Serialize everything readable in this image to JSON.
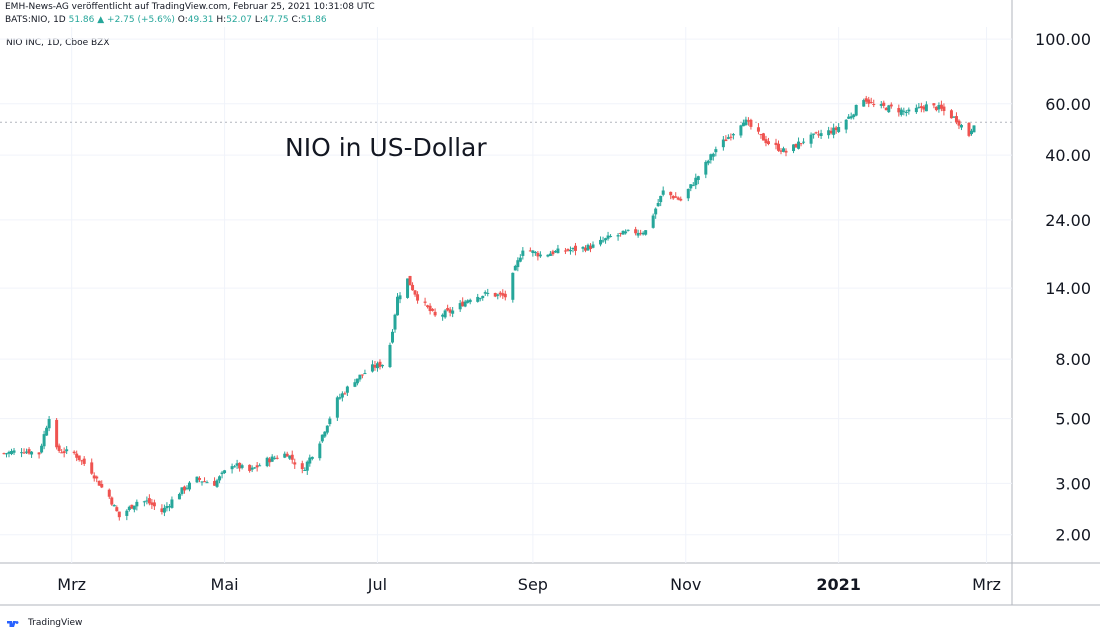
{
  "header": {
    "line1": "EMH-News-AG veröffentlicht auf TradingView.com, Februar 25, 2021 10:31:08 UTC",
    "symbol": "BATS:NIO, 1D",
    "last": "51.86",
    "change": "▲ +2.75 (+5.6%)",
    "o_label": "O:",
    "o": "49.31",
    "h_label": "H:",
    "h": "52.07",
    "l_label": "L:",
    "l": "47.75",
    "c_label": "C:",
    "c": "51.86"
  },
  "symbol_label": "NIO INC, 1D, Cboe BZX",
  "footer": {
    "brand": "TradingView",
    "logo_icon": "tradingview-logo-icon"
  },
  "colors": {
    "up": "#26a69a",
    "down": "#ef5350",
    "grid": "#f0f3fa",
    "axis": "#b2b5be"
  },
  "chart_data": {
    "type": "candlestick",
    "title": "NIO in US-Dollar",
    "yscale": "log",
    "ylim": [
      1.6,
      110
    ],
    "ytick_labels": [
      "100.00",
      "60.00",
      "40.00",
      "24.00",
      "14.00",
      "8.00",
      "5.00",
      "3.00",
      "2.00"
    ],
    "yticks": [
      100,
      60,
      40,
      24,
      14,
      8,
      5,
      3,
      2
    ],
    "xtick_labels": [
      "Mrz",
      "Mai",
      "Jul",
      "Sep",
      "Nov",
      "2021",
      "Mrz"
    ],
    "x_month_starts": [
      [
        2020,
        3
      ],
      [
        2020,
        5
      ],
      [
        2020,
        7
      ],
      [
        2020,
        9
      ],
      [
        2020,
        11
      ],
      [
        2021,
        1
      ],
      [
        2021,
        3
      ]
    ],
    "date_start": "2020-02-03",
    "date_end": "2021-02-24",
    "close_path": [
      [
        "2020-02-03",
        3.8
      ],
      [
        "2020-02-10",
        3.9
      ],
      [
        "2020-02-17",
        3.8
      ],
      [
        "2020-02-21",
        5.1
      ],
      [
        "2020-02-24",
        3.9
      ],
      [
        "2020-03-02",
        3.8
      ],
      [
        "2020-03-09",
        3.3
      ],
      [
        "2020-03-13",
        2.9
      ],
      [
        "2020-03-16",
        2.7
      ],
      [
        "2020-03-20",
        2.3
      ],
      [
        "2020-03-27",
        2.6
      ],
      [
        "2020-03-31",
        2.6
      ],
      [
        "2020-04-06",
        2.4
      ],
      [
        "2020-04-13",
        2.8
      ],
      [
        "2020-04-20",
        3.1
      ],
      [
        "2020-04-27",
        3.0
      ],
      [
        "2020-05-04",
        3.5
      ],
      [
        "2020-05-11",
        3.3
      ],
      [
        "2020-05-18",
        3.6
      ],
      [
        "2020-05-26",
        3.8
      ],
      [
        "2020-06-01",
        3.3
      ],
      [
        "2020-06-08",
        4.2
      ],
      [
        "2020-06-15",
        5.8
      ],
      [
        "2020-06-22",
        6.8
      ],
      [
        "2020-06-29",
        7.5
      ],
      [
        "2020-07-03",
        7.7
      ],
      [
        "2020-07-06",
        9.0
      ],
      [
        "2020-07-09",
        13.0
      ],
      [
        "2020-07-13",
        15.0
      ],
      [
        "2020-07-17",
        13.0
      ],
      [
        "2020-07-24",
        11.2
      ],
      [
        "2020-07-31",
        11.7
      ],
      [
        "2020-08-07",
        13.0
      ],
      [
        "2020-08-14",
        13.4
      ],
      [
        "2020-08-21",
        13.1
      ],
      [
        "2020-08-28",
        19.2
      ],
      [
        "2020-09-04",
        18.2
      ],
      [
        "2020-09-11",
        18.7
      ],
      [
        "2020-09-18",
        19.0
      ],
      [
        "2020-09-25",
        19.5
      ],
      [
        "2020-10-02",
        21.0
      ],
      [
        "2020-10-09",
        21.7
      ],
      [
        "2020-10-16",
        22.0
      ],
      [
        "2020-10-23",
        30.0
      ],
      [
        "2020-10-30",
        28.0
      ],
      [
        "2020-11-06",
        34.0
      ],
      [
        "2020-11-13",
        42.0
      ],
      [
        "2020-11-20",
        48.0
      ],
      [
        "2020-11-24",
        53.0
      ],
      [
        "2020-11-30",
        47.0
      ],
      [
        "2020-12-04",
        44.0
      ],
      [
        "2020-12-11",
        41.0
      ],
      [
        "2020-12-18",
        45.0
      ],
      [
        "2020-12-24",
        47.0
      ],
      [
        "2020-12-31",
        49.0
      ],
      [
        "2021-01-06",
        55.0
      ],
      [
        "2021-01-11",
        63.0
      ],
      [
        "2021-01-15",
        59.0
      ],
      [
        "2021-01-22",
        58.0
      ],
      [
        "2021-01-29",
        56.0
      ],
      [
        "2021-02-05",
        59.0
      ],
      [
        "2021-02-10",
        58.0
      ],
      [
        "2021-02-17",
        53.0
      ],
      [
        "2021-02-22",
        47.0
      ],
      [
        "2021-02-24",
        51.86
      ]
    ],
    "last_close": 51.86,
    "grid": true
  }
}
